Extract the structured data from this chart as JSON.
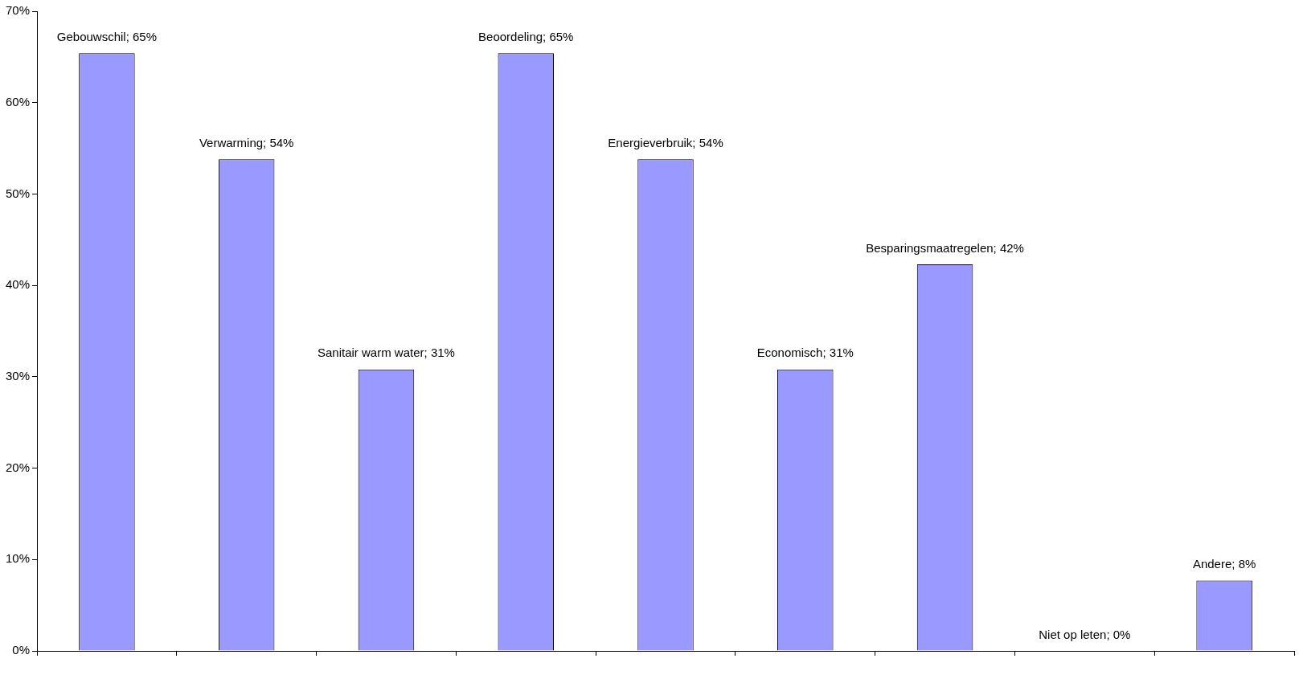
{
  "chart_data": {
    "type": "bar",
    "categories": [
      null,
      null,
      null,
      null,
      null,
      null,
      null,
      null,
      null
    ],
    "values": [
      65.4,
      53.8,
      30.8,
      65.4,
      53.8,
      30.8,
      42.3,
      0,
      7.7
    ],
    "value_labels": [
      "Gebouwschil; 65%",
      "Verwarming; 54%",
      "Sanitair warm water; 31%",
      "Beoordeling; 65%",
      "Energieverbruik; 54%",
      "Economisch; 31%",
      "Besparingsmaatregelen; 42%",
      "Niet op leten; 0%",
      "Andere; 8%"
    ],
    "color": "#9999ff",
    "ylim": [
      0,
      70
    ],
    "yticks": [
      {
        "value": 0,
        "label": "0%"
      },
      {
        "value": 10,
        "label": "10%"
      },
      {
        "value": 20,
        "label": "20%"
      },
      {
        "value": 30,
        "label": "30%"
      },
      {
        "value": 40,
        "label": "40%"
      },
      {
        "value": 50,
        "label": "50%"
      },
      {
        "value": 60,
        "label": "60%"
      },
      {
        "value": 70,
        "label": "70%"
      }
    ],
    "grid": false,
    "legend": false
  }
}
